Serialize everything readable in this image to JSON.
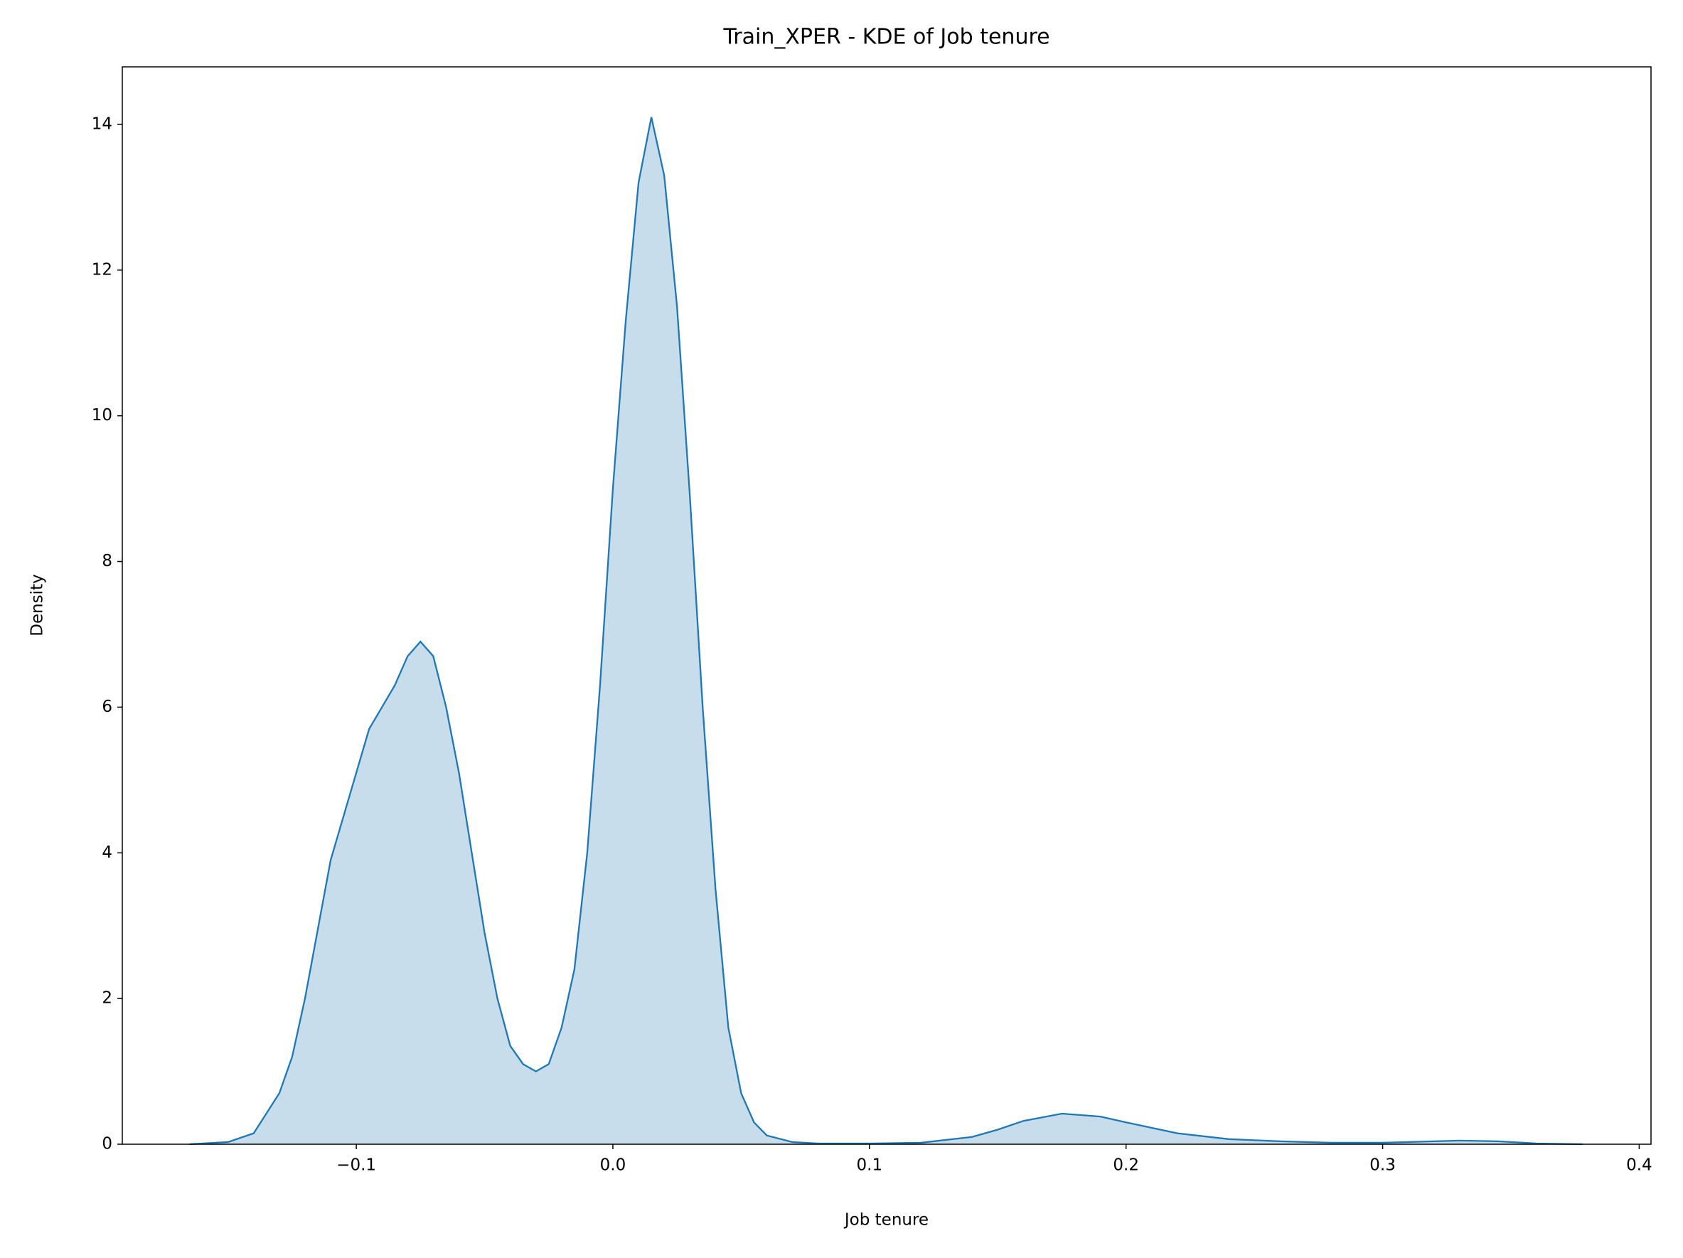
{
  "chart_data": {
    "type": "kde",
    "title": "Train_XPER - KDE of Job tenure",
    "xlabel": "Job tenure",
    "ylabel": "Density",
    "x": [
      -0.165,
      -0.15,
      -0.14,
      -0.13,
      -0.125,
      -0.12,
      -0.11,
      -0.1,
      -0.095,
      -0.09,
      -0.085,
      -0.08,
      -0.075,
      -0.07,
      -0.065,
      -0.06,
      -0.055,
      -0.05,
      -0.045,
      -0.04,
      -0.035,
      -0.03,
      -0.025,
      -0.02,
      -0.015,
      -0.01,
      -0.005,
      0.0,
      0.005,
      0.01,
      0.015,
      0.02,
      0.025,
      0.03,
      0.035,
      0.04,
      0.045,
      0.05,
      0.055,
      0.06,
      0.07,
      0.08,
      0.1,
      0.12,
      0.14,
      0.15,
      0.16,
      0.175,
      0.19,
      0.2,
      0.22,
      0.24,
      0.26,
      0.28,
      0.3,
      0.32,
      0.33,
      0.345,
      0.36,
      0.378
    ],
    "series": [
      {
        "color": "#1f77b4",
        "values": [
          0,
          0.03,
          0.15,
          0.7,
          1.2,
          2.0,
          3.9,
          5.1,
          5.7,
          6.0,
          6.3,
          6.7,
          6.9,
          6.7,
          6.0,
          5.1,
          4.0,
          2.9,
          2.0,
          1.35,
          1.1,
          1.0,
          1.1,
          1.6,
          2.4,
          4.0,
          6.3,
          9.0,
          11.3,
          13.2,
          14.1,
          13.3,
          11.5,
          8.9,
          6.0,
          3.5,
          1.6,
          0.7,
          0.3,
          0.12,
          0.03,
          0.01,
          0.01,
          0.02,
          0.1,
          0.2,
          0.32,
          0.42,
          0.38,
          0.3,
          0.15,
          0.07,
          0.04,
          0.02,
          0.02,
          0.04,
          0.05,
          0.04,
          0.01,
          0
        ]
      }
    ],
    "xlim": [
      -0.1912,
      0.4046
    ],
    "ylim": [
      0,
      14.79
    ],
    "xticks": [
      {
        "value": -0.1,
        "label": "−0.1"
      },
      {
        "value": 0,
        "label": "0.0"
      },
      0.1,
      0.2,
      0.3,
      0.4
    ],
    "yticks": [
      0,
      2,
      4,
      6,
      8,
      10,
      12,
      14
    ],
    "grid": false
  }
}
